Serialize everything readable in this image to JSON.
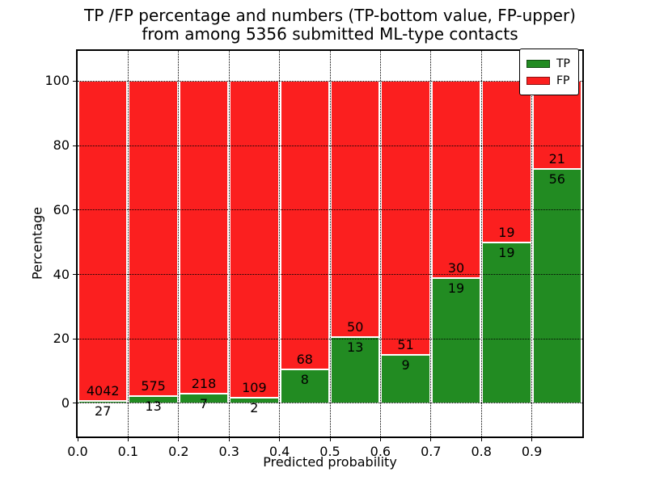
{
  "figure": {
    "title_line1": "TP /FP percentage and numbers (TP-bottom value, FP-upper)",
    "title_line2": "from among 5356 submitted ML-type contacts"
  },
  "chart_data": {
    "type": "bar",
    "stacked": true,
    "normalized_to_percent": true,
    "title": "TP /FP percentage and numbers (TP-bottom value, FP-upper) from among 5356 submitted ML-type contacts",
    "xlabel": "Predicted probability",
    "ylabel": "Percentage",
    "xlim": [
      0.0,
      1.0
    ],
    "ylim": [
      -10.3,
      109.4
    ],
    "xticks": [
      "0.0",
      "0.1",
      "0.2",
      "0.3",
      "0.4",
      "0.5",
      "0.6",
      "0.7",
      "0.8",
      "0.9"
    ],
    "yticks": [
      0,
      20,
      40,
      60,
      80,
      100
    ],
    "grid": true,
    "grid_style": "dotted",
    "bin_width": 0.1,
    "bin_starts": [
      0.0,
      0.1,
      0.2,
      0.3,
      0.4,
      0.5,
      0.6,
      0.7,
      0.8,
      0.9
    ],
    "total_contacts": 5356,
    "series": [
      {
        "name": "TP",
        "color": "#228b22",
        "counts": [
          27,
          13,
          7,
          2,
          8,
          13,
          9,
          19,
          19,
          56
        ],
        "percent": [
          0.66,
          2.21,
          3.11,
          1.8,
          10.53,
          20.63,
          15.0,
          38.78,
          50.0,
          72.73
        ]
      },
      {
        "name": "FP",
        "color": "#fb1f1f",
        "counts": [
          4042,
          575,
          218,
          109,
          68,
          50,
          51,
          30,
          19,
          21
        ],
        "percent": [
          99.34,
          97.79,
          96.89,
          98.2,
          89.47,
          79.37,
          85.0,
          61.22,
          50.0,
          27.27
        ]
      }
    ],
    "legend": {
      "position": "upper right",
      "entries": [
        "TP",
        "FP"
      ]
    }
  },
  "colors": {
    "tp_green": "#228b22",
    "fp_red": "#fb1f1f",
    "background": "#ffffff",
    "grid_and_text": "#000000",
    "bar_edge": "#ffffff"
  }
}
